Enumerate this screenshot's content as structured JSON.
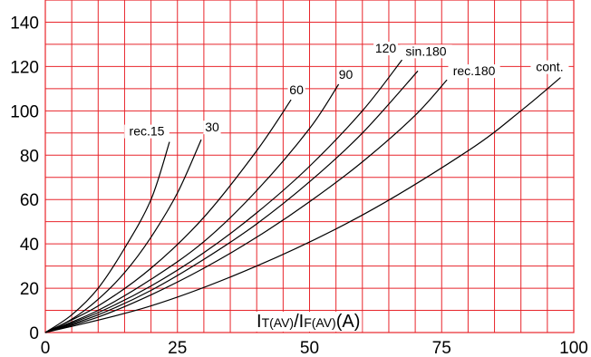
{
  "chart_data": {
    "type": "line",
    "title": "",
    "ylabel": "",
    "xlabel_main": "I",
    "xlabel_sub1": "T(AV)",
    "xlabel_sep": "/I",
    "xlabel_sub2": "F(AV)",
    "xlabel_unit": "(A)",
    "xlim": [
      0,
      100
    ],
    "ylim": [
      0,
      150
    ],
    "xticks": [
      0,
      25,
      50,
      75,
      100
    ],
    "yticks": [
      0,
      20,
      40,
      60,
      80,
      100,
      120,
      140
    ],
    "grid": true,
    "grid_color": "#e8252b",
    "curve_color": "#000000",
    "series": [
      {
        "name": "rec.15",
        "x": [
          0,
          5,
          10,
          15,
          20,
          23.5
        ],
        "y": [
          0,
          8,
          20,
          38,
          60,
          86
        ]
      },
      {
        "name": "30",
        "x": [
          0,
          5,
          10,
          15,
          20,
          25,
          29.5
        ],
        "y": [
          0,
          6,
          15,
          27,
          43,
          63,
          87
        ]
      },
      {
        "name": "60",
        "x": [
          0,
          10,
          20,
          30,
          40,
          46.5
        ],
        "y": [
          0,
          12,
          29,
          52,
          82,
          105
        ]
      },
      {
        "name": "90",
        "x": [
          0,
          10,
          20,
          30,
          40,
          50,
          55.5
        ],
        "y": [
          0,
          10,
          24,
          41,
          64,
          92,
          112
        ]
      },
      {
        "name": "120",
        "x": [
          0,
          10,
          20,
          30,
          40,
          50,
          60,
          67.5
        ],
        "y": [
          0,
          9,
          21,
          36,
          54,
          75,
          100,
          123
        ]
      },
      {
        "name": "sin.180",
        "x": [
          0,
          10,
          20,
          30,
          40,
          50,
          60,
          70.5
        ],
        "y": [
          0,
          8,
          19,
          33,
          49,
          68,
          90,
          118
        ]
      },
      {
        "name": "rec.180",
        "x": [
          0,
          10,
          20,
          30,
          40,
          50,
          60,
          70,
          76
        ],
        "y": [
          0,
          7,
          17,
          29,
          43,
          59,
          77,
          98,
          114
        ]
      },
      {
        "name": "cont.",
        "x": [
          0,
          20,
          40,
          60,
          80,
          90,
          97.5
        ],
        "y": [
          0,
          12,
          30,
          53,
          82,
          100,
          115
        ]
      }
    ]
  }
}
